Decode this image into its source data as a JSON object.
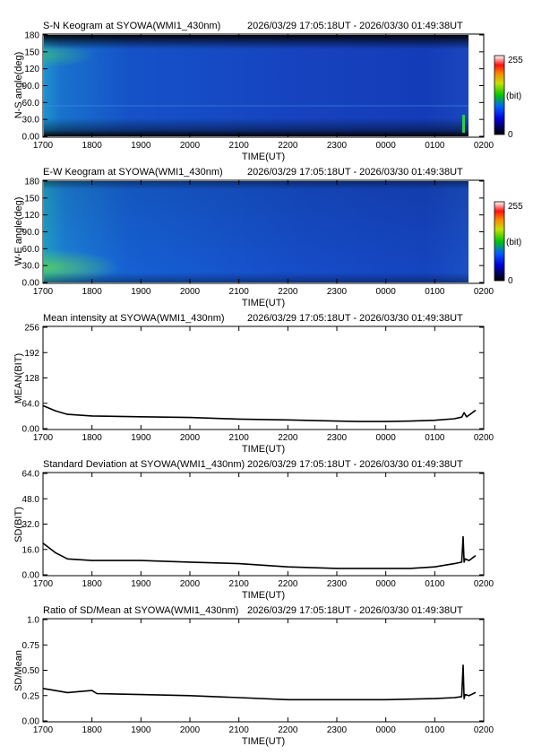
{
  "window": {
    "time_range": "2026/03/29 17:05:18UT - 2026/03/30 01:49:38UT"
  },
  "common": {
    "xlabel": "TIME(UT)",
    "xticks": [
      "1700",
      "1800",
      "1900",
      "2000",
      "2100",
      "2200",
      "2300",
      "0000",
      "0100",
      "0200"
    ]
  },
  "keograms": [
    {
      "title": "S-N Keogram at SYOWA(WMI1_430nm)",
      "ylabel": "N-S angle(deg)",
      "yticks": [
        "0.00",
        "30.0",
        "60.0",
        "90.0",
        "120",
        "150",
        "180"
      ],
      "colorbar": {
        "max": "255",
        "unit": "(bit)",
        "min": "0"
      }
    },
    {
      "title": "E-W Keogram at SYOWA(WMI1_430nm)",
      "ylabel": "W-E angle(deg)",
      "yticks": [
        "0.00",
        "30.0",
        "60.0",
        "90.0",
        "120",
        "150",
        "180"
      ],
      "colorbar": {
        "max": "255",
        "unit": "(bit)",
        "min": "0"
      }
    }
  ],
  "chart_data": [
    {
      "type": "heatmap",
      "title": "S-N Keogram at SYOWA(WMI1_430nm)",
      "xlabel": "TIME(UT)",
      "ylabel": "N-S angle(deg)",
      "xlim_hours_ut": [
        17.0,
        26.0
      ],
      "data_range_hours_ut": [
        17.0883,
        25.8272
      ],
      "ylim": [
        0,
        180
      ],
      "colorscale": "rainbow (black-blue-green-yellow-red-white)",
      "zlim": [
        0,
        255
      ],
      "zunit": "(bit)",
      "description_level": "mostly blue (~40-60 bit), brighter greenish near start at high/low angles"
    },
    {
      "type": "heatmap",
      "title": "E-W Keogram at SYOWA(WMI1_430nm)",
      "xlabel": "TIME(UT)",
      "ylabel": "W-E angle(deg)",
      "xlim_hours_ut": [
        17.0,
        26.0
      ],
      "data_range_hours_ut": [
        17.0883,
        25.8272
      ],
      "ylim": [
        0,
        180
      ],
      "colorscale": "rainbow (black-blue-green-yellow-red-white)",
      "zlim": [
        0,
        255
      ],
      "zunit": "(bit)",
      "description_level": "mostly blue, greenish near start at low angles"
    },
    {
      "type": "line",
      "title": "Mean intensity at SYOWA(WMI1_430nm)",
      "xlabel": "TIME(UT)",
      "ylabel": "MEAN(BIT)",
      "yticks": [
        "0.00",
        "64.0",
        "128",
        "192",
        "256"
      ],
      "ylim": [
        0,
        256
      ],
      "x_hours_ut": [
        17.0,
        17.25,
        17.5,
        18.0,
        19.0,
        20.0,
        21.0,
        22.0,
        23.0,
        23.5,
        24.0,
        24.5,
        25.0,
        25.4,
        25.55,
        25.6,
        25.65,
        25.7,
        25.83
      ],
      "values": [
        58,
        45,
        36,
        32,
        30,
        28,
        24,
        22,
        19,
        18,
        18,
        19,
        21,
        25,
        29,
        40,
        30,
        34,
        46
      ]
    },
    {
      "type": "line",
      "title": "Standard Deviation at SYOWA(WMI1_430nm)",
      "xlabel": "TIME(UT)",
      "ylabel": "SD(BIT)",
      "yticks": [
        "0.00",
        "16.0",
        "32.0",
        "48.0",
        "64.0"
      ],
      "ylim": [
        0,
        64
      ],
      "x_hours_ut": [
        17.0,
        17.25,
        17.5,
        18.0,
        19.0,
        20.0,
        21.0,
        22.0,
        23.0,
        24.0,
        24.5,
        25.0,
        25.4,
        25.55,
        25.58,
        25.6,
        25.62,
        25.7,
        25.83
      ],
      "values": [
        20,
        14,
        10,
        9,
        9,
        8,
        7,
        5,
        4,
        4,
        4,
        5,
        7,
        8,
        24,
        8,
        10,
        9,
        12
      ]
    },
    {
      "type": "line",
      "title": "Ratio of SD/Mean at SYOWA(WMI1_430nm)",
      "xlabel": "TIME(UT)",
      "ylabel": "SD/Mean",
      "yticks": [
        "0.00",
        "0.25",
        "0.50",
        "0.75",
        "1.0"
      ],
      "ylim": [
        0,
        1
      ],
      "x_hours_ut": [
        17.0,
        17.25,
        17.5,
        17.75,
        18.0,
        18.1,
        19.0,
        20.0,
        21.0,
        22.0,
        23.0,
        24.0,
        25.0,
        25.4,
        25.55,
        25.58,
        25.6,
        25.62,
        25.7,
        25.83
      ],
      "values": [
        0.32,
        0.3,
        0.28,
        0.29,
        0.3,
        0.27,
        0.26,
        0.25,
        0.23,
        0.21,
        0.21,
        0.21,
        0.22,
        0.23,
        0.24,
        0.55,
        0.22,
        0.26,
        0.25,
        0.28
      ]
    }
  ]
}
